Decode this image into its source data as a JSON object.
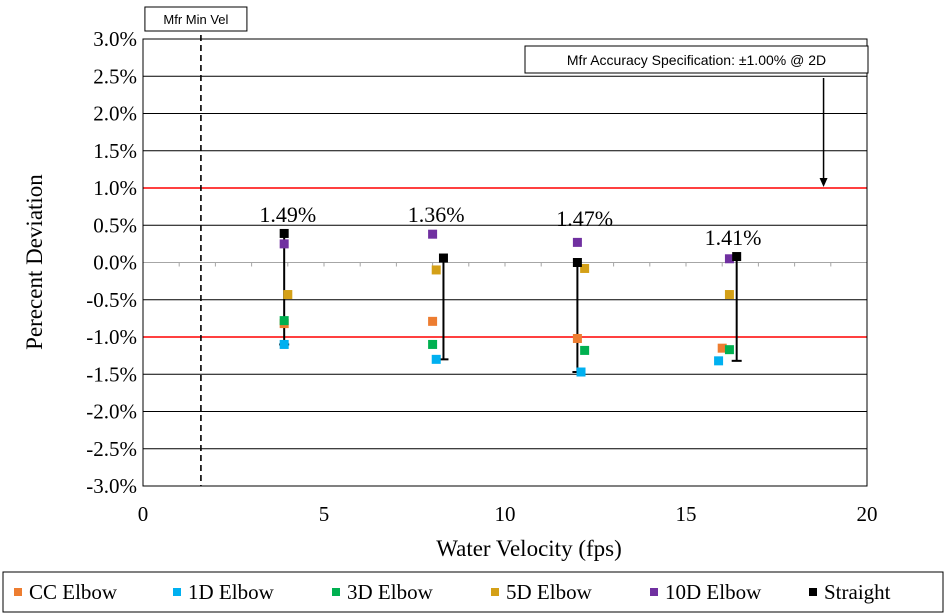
{
  "chart_data": {
    "type": "scatter",
    "xlabel": "Water Velocity (fps)",
    "ylabel": "Perecent Deviation",
    "xlim": [
      0,
      20
    ],
    "ylim": [
      -3.0,
      3.0
    ],
    "x_ticks": [
      0,
      5,
      10,
      15,
      20
    ],
    "x_tick_labels": [
      "0",
      "5",
      "10",
      "15",
      "20"
    ],
    "y_ticks": [
      3.0,
      2.5,
      2.0,
      1.5,
      1.0,
      0.5,
      0.0,
      -0.5,
      -1.0,
      -1.5,
      -2.0,
      -2.5,
      -3.0
    ],
    "y_tick_labels": [
      "3.0%",
      "2.5%",
      "2.0%",
      "1.5%",
      "1.0%",
      "0.5%",
      "0.0%",
      "-0.5%",
      "-1.0%",
      "-1.5%",
      "-2.0%",
      "-2.5%",
      "-3.0%"
    ],
    "grid": true,
    "legend_position": "bottom",
    "series": [
      {
        "name": "CC Elbow",
        "color": "#ED7D31",
        "x": [
          3.9,
          8.0,
          12.0,
          16.0
        ],
        "y": [
          -0.82,
          -0.79,
          -1.02,
          -1.15
        ]
      },
      {
        "name": "1D Elbow",
        "color": "#00B0F0",
        "x": [
          3.9,
          8.1,
          12.1,
          15.9
        ],
        "y": [
          -1.1,
          -1.3,
          -1.47,
          -1.32
        ]
      },
      {
        "name": "3D Elbow",
        "color": "#00B050",
        "x": [
          3.9,
          8.0,
          12.2,
          16.2
        ],
        "y": [
          -0.78,
          -1.1,
          -1.18,
          -1.17
        ]
      },
      {
        "name": "5D Elbow",
        "color": "#D4A017",
        "x": [
          4.0,
          8.1,
          12.2,
          16.2
        ],
        "y": [
          -0.43,
          -0.1,
          -0.08,
          -0.43
        ]
      },
      {
        "name": "10D Elbow",
        "color": "#7030A0",
        "x": [
          3.9,
          8.0,
          12.0,
          16.2
        ],
        "y": [
          0.25,
          0.38,
          0.27,
          0.05
        ]
      },
      {
        "name": "Straight",
        "color": "#000000",
        "x": [
          3.9,
          8.3,
          12.0,
          16.4
        ],
        "y": [
          0.39,
          0.06,
          0.0,
          0.08
        ]
      }
    ],
    "range_bars": [
      {
        "x": 3.9,
        "y_top": 0.39,
        "y_bottom": -1.1,
        "label": "1.49%",
        "label_x": 4.0,
        "label_y": 0.65
      },
      {
        "x": 8.3,
        "y_top": 0.06,
        "y_bottom": -1.3,
        "label": "1.36%",
        "label_x": 8.1,
        "label_y": 0.65
      },
      {
        "x": 12.0,
        "y_top": 0.0,
        "y_bottom": -1.47,
        "label": "1.47%",
        "label_x": 12.2,
        "label_y": 0.6
      },
      {
        "x": 16.4,
        "y_top": 0.08,
        "y_bottom": -1.32,
        "label": "1.41%",
        "label_x": 16.3,
        "label_y": 0.34
      }
    ],
    "reference_lines": [
      {
        "orientation": "horizontal",
        "value": 1.0,
        "color": "#FF0000"
      },
      {
        "orientation": "horizontal",
        "value": -1.0,
        "color": "#FF0000"
      },
      {
        "orientation": "vertical",
        "value": 1.6,
        "color": "#000000",
        "style": "dashed",
        "label": "Mfr Min Vel"
      }
    ],
    "annotations": [
      {
        "text": "Mfr Accuracy Specification: ±1.00% @ 2D",
        "arrow_x": 18.8,
        "arrow_to_y": 1.0
      }
    ]
  }
}
